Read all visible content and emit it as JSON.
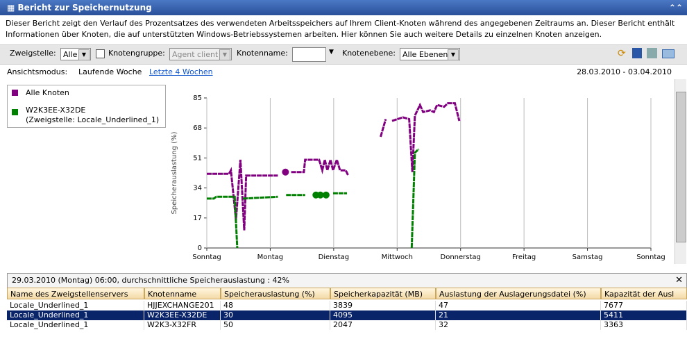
{
  "header": {
    "title": "Bericht zur Speichernutzung"
  },
  "description": "Dieser Bericht zeigt den Verlauf des Prozentsatzes des verwendeten Arbeitsspeichers auf Ihrem Client-Knoten während des angegebenen Zeitraums an. Dieser Bericht enthält Informationen über Knoten, die auf unterstützten Windows-Betriebssystemen arbeiten. Hier können Sie auch weitere Details zu einzelnen Knoten anzeigen.",
  "toolbar": {
    "branch_label": "Zweigstelle:",
    "branch_value": "Alle",
    "group_label": "Knotengruppe:",
    "group_value": "Agent client",
    "node_label": "Knotenname:",
    "level_label": "Knotenebene:",
    "level_value": "Alle Ebenen"
  },
  "view": {
    "label": "Ansichtsmodus:",
    "current": "Laufende Woche",
    "link": "Letzte 4 Wochen",
    "range": "28.03.2010 - 03.04.2010"
  },
  "chart_data": {
    "type": "line",
    "ylabel": "Speicherauslastung (%)",
    "xlim": [
      0,
      7
    ],
    "xticks": [
      {
        "value": 0,
        "label": "Sonntag"
      },
      {
        "value": 1,
        "label": "Montag"
      },
      {
        "value": 2,
        "label": "Dienstag"
      },
      {
        "value": 3,
        "label": "Mittwoch"
      },
      {
        "value": 4,
        "label": "Donnerstag"
      },
      {
        "value": 5,
        "label": "Freitag"
      },
      {
        "value": 6,
        "label": "Samstag"
      },
      {
        "value": 7,
        "label": "Sonntag"
      }
    ],
    "ylim": [
      0,
      85
    ],
    "yticks": [
      0,
      17,
      34,
      51,
      68,
      85
    ],
    "grid": true,
    "series": [
      {
        "name": "Alle Knoten",
        "color": "#800080",
        "x": [
          0,
          0.35,
          0.38,
          0.46,
          0.53,
          0.59,
          0.62,
          1.12,
          null,
          1.24,
          null,
          1.33,
          1.53,
          1.55,
          1.77,
          1.82,
          1.86,
          1.9,
          1.95,
          1.99,
          2.05,
          2.1,
          2.19,
          2.23,
          null,
          2.74,
          2.82,
          null,
          2.92,
          3.09,
          3.19,
          3.24,
          3.28,
          3.36,
          3.41,
          3.52,
          3.58,
          3.63,
          3.74,
          3.8,
          3.91,
          3.98
        ],
        "values": [
          42,
          42,
          44,
          16,
          50,
          10,
          41,
          41,
          null,
          43,
          null,
          43,
          43,
          50,
          50,
          44,
          50,
          44,
          50,
          44,
          50,
          44,
          44,
          41,
          null,
          63,
          73,
          null,
          72,
          74,
          73,
          43,
          75,
          81,
          77,
          78,
          77,
          81,
          80,
          82,
          82,
          72
        ]
      },
      {
        "name": "W2K3EE-X32DE",
        "branch": "(Zweigstelle: Locale_Underlined_1)",
        "color": "#008000",
        "x": [
          0,
          0.11,
          0.15,
          0.44,
          0.48,
          null,
          0.57,
          1.12,
          null,
          1.25,
          1.55,
          null,
          1.72,
          null,
          1.79,
          null,
          1.88,
          null,
          1.99,
          2.21,
          null,
          3.23,
          3.28,
          3.34
        ],
        "values": [
          28,
          28,
          29,
          29,
          0,
          null,
          28,
          29,
          null,
          30,
          30,
          null,
          30,
          null,
          30,
          null,
          30,
          null,
          31,
          31,
          null,
          0,
          54,
          56
        ]
      }
    ]
  },
  "info": "29.03.2010 (Montag) 06:00, durchschnittliche Speicherauslastung : 42%",
  "table": {
    "columns": [
      "Name des Zweigstellenservers",
      "Knotenname",
      "Speicherauslastung (%)",
      "Speicherkapazität (MB)",
      "Auslastung der Auslagerungsdatei (%)",
      "Kapazität der Ausl"
    ],
    "rows": [
      [
        "Locale_Underlined_1",
        "HJJEXCHANGE201",
        "48",
        "3839",
        "47",
        "7677"
      ],
      [
        "Locale_Underlined_1",
        "W2K3EE-X32DE",
        "30",
        "4095",
        "21",
        "5411"
      ],
      [
        "Locale_Underlined_1",
        "W2K3-X32FR",
        "50",
        "2047",
        "32",
        "3363"
      ]
    ],
    "selected": 1
  }
}
